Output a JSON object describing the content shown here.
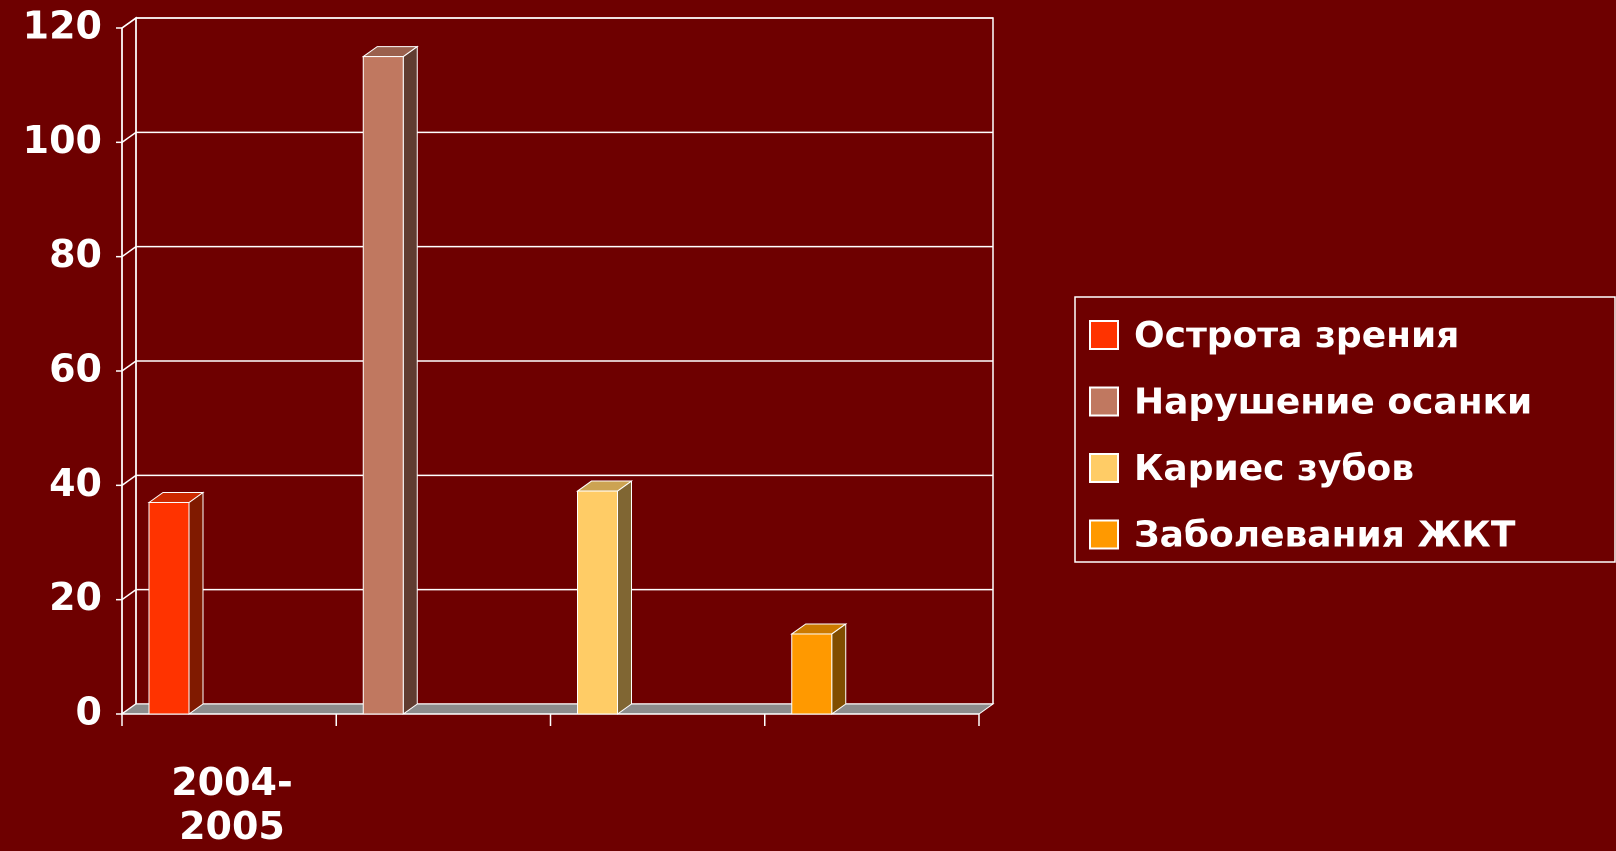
{
  "chart_data": {
    "type": "bar",
    "categories": [
      "2004-2005"
    ],
    "series": [
      {
        "name": "Острота зрения",
        "color": "#ff3300",
        "values": [
          37
        ]
      },
      {
        "name": "Нарушение осанки",
        "color": "#c07860",
        "values": [
          115
        ]
      },
      {
        "name": "Кариес зубов",
        "color": "#ffcc66",
        "values": [
          39
        ]
      },
      {
        "name": "Заболевания ЖКТ",
        "color": "#ff9900",
        "values": [
          14
        ]
      }
    ],
    "ylim": [
      0,
      120
    ],
    "yticks": [
      0,
      20,
      40,
      60,
      80,
      100,
      120
    ],
    "grid": true,
    "legend": "right"
  }
}
